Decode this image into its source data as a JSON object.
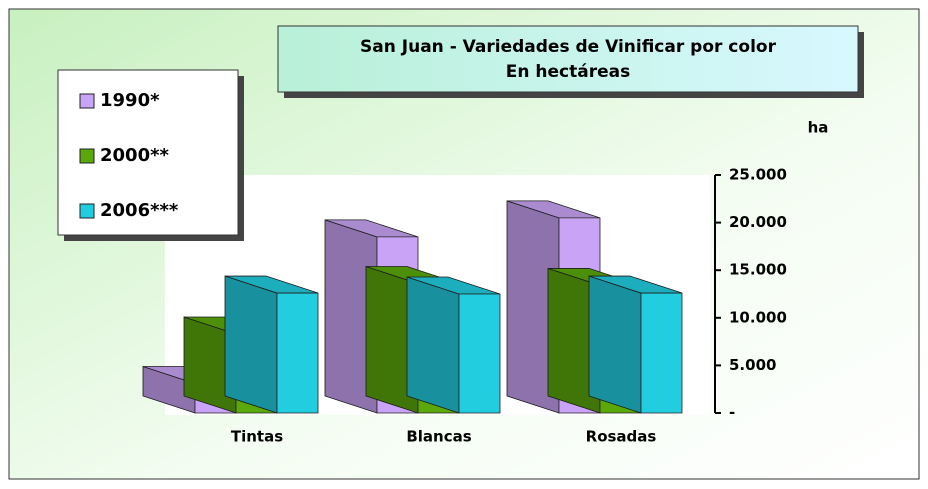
{
  "chart_data": {
    "type": "bar3d",
    "title": "San Juan - Variedades de Vinificar por color",
    "subtitle": "En hectáreas",
    "y_label": "ha",
    "categories": [
      "Tintas",
      "Blancas",
      "Rosadas"
    ],
    "series": [
      {
        "name": "1990*",
        "color": "#c9a3f5",
        "values": [
          3100,
          18500,
          20500
        ]
      },
      {
        "name": "2000**",
        "color": "#5aa80a",
        "values": [
          8300,
          13600,
          13400
        ]
      },
      {
        "name": "2006***",
        "color": "#22cde0",
        "values": [
          12600,
          12500,
          12600
        ]
      }
    ],
    "ylim": [
      0,
      25000
    ],
    "yticks": [
      {
        "value": 0,
        "label": "-"
      },
      {
        "value": 5000,
        "label": "5.000"
      },
      {
        "value": 10000,
        "label": "10.000"
      },
      {
        "value": 15000,
        "label": "15.000"
      },
      {
        "value": 20000,
        "label": "20.000"
      },
      {
        "value": 25000,
        "label": "25.000"
      }
    ],
    "legend": "upper left"
  }
}
